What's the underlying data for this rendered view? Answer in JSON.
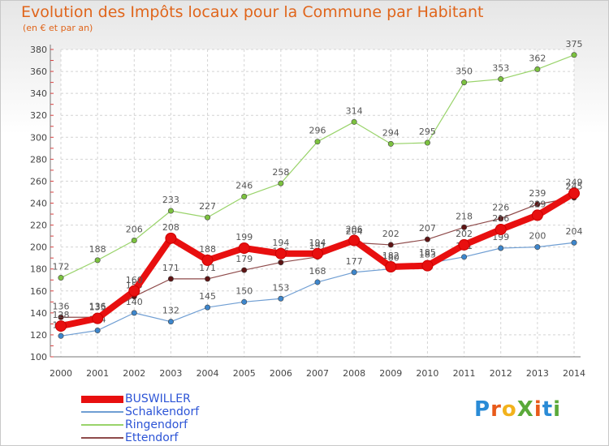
{
  "title": "Evolution des Impôts locaux pour la Commune par Habitant",
  "subtitle": "(en € et par an)",
  "logo": {
    "text": "ProXiti",
    "letters": [
      "P",
      "r",
      "o",
      "X",
      "i",
      "t",
      "i"
    ],
    "colors": [
      "#2a8bd6",
      "#e85a1a",
      "#f2b21c",
      "#5aa93a",
      "#e85a1a",
      "#2a8bd6",
      "#5aa93a"
    ]
  },
  "chart_data": {
    "type": "line",
    "title": "Evolution des Impôts locaux pour la Commune par Habitant",
    "ylabel": "",
    "xlabel": "",
    "x": [
      "2000",
      "2001",
      "2002",
      "2003",
      "2004",
      "2005",
      "2006",
      "2007",
      "2008",
      "2009",
      "2010",
      "2011",
      "2012",
      "2013",
      "2014"
    ],
    "yticks": [
      100,
      120,
      140,
      160,
      180,
      200,
      220,
      240,
      260,
      280,
      300,
      320,
      340,
      360,
      380
    ],
    "ylim": [
      100,
      380
    ],
    "grid": true,
    "legend": "bottom-left",
    "series": [
      {
        "name": "Ringendorf",
        "color": "#99d36a",
        "marker": "#7cc23f",
        "width": 1.2,
        "values": [
          172,
          188,
          206,
          233,
          227,
          246,
          258,
          296,
          314,
          294,
          295,
          350,
          353,
          362,
          375
        ],
        "labels": [
          "172",
          "188",
          "206",
          "233",
          "227",
          "246",
          "258",
          "296",
          "314",
          "294",
          "295",
          "350",
          "353",
          "362",
          "375"
        ]
      },
      {
        "name": "Schalkendorf",
        "color": "#6f9ed3",
        "marker": "#3d86cc",
        "width": 1.2,
        "values": [
          119,
          124,
          140,
          132,
          145,
          150,
          153,
          168,
          177,
          180,
          185,
          191,
          199,
          200,
          204
        ],
        "labels": [
          "119",
          "124",
          "140",
          "132",
          "145",
          "150",
          "153",
          "168",
          "177",
          "180",
          "185",
          "191",
          "199",
          "200",
          "204"
        ]
      },
      {
        "name": "Ettendorf",
        "color": "#8e4a4a",
        "marker": "#5e1414",
        "width": 1.2,
        "values": [
          136,
          136,
          155,
          171,
          171,
          179,
          186,
          191,
          204,
          202,
          207,
          218,
          226,
          239,
          245
        ],
        "labels": [
          "136",
          "136",
          "155",
          "171",
          "171",
          "179",
          "186",
          "191",
          "204",
          "202",
          "207",
          "218",
          "226",
          "239",
          "245"
        ]
      },
      {
        "name": "BUSWILLER",
        "color": "#e80f0f",
        "marker": "#e80f0f",
        "width": 8,
        "values": [
          128,
          135,
          160,
          208,
          188,
          199,
          194,
          194,
          206,
          182,
          183,
          202,
          216,
          229,
          249
        ],
        "labels": [
          "128",
          "135",
          "160",
          "208",
          "188",
          "199",
          "194",
          "194",
          "206",
          "182",
          "183",
          "202",
          "216",
          "229",
          "249"
        ]
      }
    ]
  }
}
